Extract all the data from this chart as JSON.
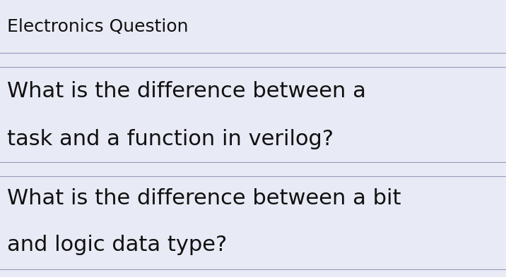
{
  "background_color": "#e8eaf5",
  "line_color": "#9999bb",
  "text_color": "#111111",
  "title": "Electronics Question",
  "title_fontsize": 18,
  "question1_line1": "What is the difference between a",
  "question1_line2": "task and a function in verilog?",
  "question2_line1": "What is the difference between a bit",
  "question2_line2": "and logic data type?",
  "question_fontsize": 22,
  "fig_width": 7.16,
  "fig_height": 3.93,
  "dpi": 100
}
